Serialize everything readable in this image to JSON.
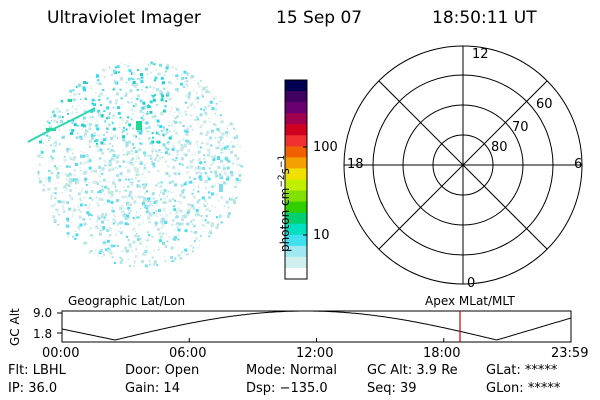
{
  "header": {
    "instrument": "Ultraviolet Imager",
    "date": "15 Sep 07",
    "time": "18:50:11 UT"
  },
  "image": {
    "description_icon": "auroral-image-disk"
  },
  "colorbar": {
    "unit_label": "photon cm",
    "unit_exp1": "−2",
    "unit_mid": "s",
    "unit_exp2": "−1",
    "ticks": [
      "100",
      "10"
    ],
    "colors": [
      "#000050",
      "#400060",
      "#6a0070",
      "#a00050",
      "#d00020",
      "#f03030",
      "#f06000",
      "#f4a000",
      "#f0e000",
      "#c0f000",
      "#80e000",
      "#30d000",
      "#00d070",
      "#00e0c0",
      "#40e0f0",
      "#a0e8f0",
      "#d0f0f0",
      "#ffffff"
    ]
  },
  "polar": {
    "mlt_labels": {
      "top": "12",
      "left": "18",
      "right": "6",
      "bottom": "0"
    },
    "lat_labels": [
      "60",
      "70",
      "80"
    ]
  },
  "timeline": {
    "left_title": "Geographic Lat/Lon",
    "right_title": "Apex MLat/MLT",
    "yaxis_label": "GC Alt",
    "ymax": "9.0",
    "ymin": "1.8",
    "xticks": [
      "00:00",
      "06:00",
      "12:00",
      "18:00",
      "23:59"
    ],
    "marker_color": "#d00000"
  },
  "status": {
    "row1": [
      {
        "k": "Flt:",
        "v": "LBHL"
      },
      {
        "k": "Door:",
        "v": "Open"
      },
      {
        "k": "Mode:",
        "v": "Normal"
      },
      {
        "k": "GC Alt:",
        "v": "3.9 Re"
      },
      {
        "k": "GLat:",
        "v": "*****"
      }
    ],
    "row2": [
      {
        "k": "IP:",
        "v": "36.0"
      },
      {
        "k": "Gain:",
        "v": "14"
      },
      {
        "k": "Dsp:",
        "v": "−135.0"
      },
      {
        "k": "Seq:",
        "v": "39"
      },
      {
        "k": "GLon:",
        "v": "*****"
      }
    ]
  }
}
